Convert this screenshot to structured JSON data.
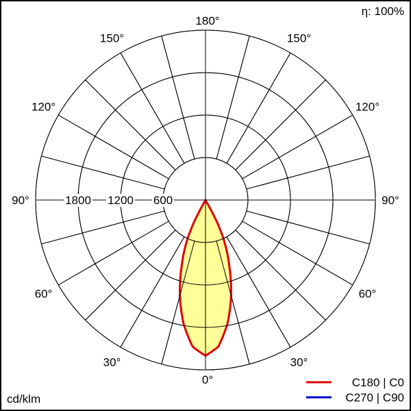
{
  "chart_data": {
    "type": "polar",
    "efficiency_label": "η: 100%",
    "unit_label": "cd/klm",
    "radial_ticks": [
      600,
      1200,
      1800
    ],
    "radial_max": 2400,
    "radial_tick_labels": [
      "600",
      "1200",
      "1800"
    ],
    "angle_labels": [
      {
        "angle": 180,
        "text": "180°"
      },
      {
        "angle": 150,
        "text": "150°"
      },
      {
        "angle": 120,
        "text": "120°"
      },
      {
        "angle": 90,
        "text": "90°"
      },
      {
        "angle": 60,
        "text": "60°"
      },
      {
        "angle": 30,
        "text": "30°"
      },
      {
        "angle": 0,
        "text": "0°"
      }
    ],
    "spoke_step_deg": 15,
    "series": [
      {
        "name": "C270 | C90",
        "color": "#0000cc",
        "angles": [
          0,
          5,
          10,
          15,
          20,
          25,
          28,
          30,
          35,
          90,
          180
        ],
        "values": [
          2200,
          2080,
          1780,
          1400,
          980,
          600,
          300,
          0,
          0,
          0,
          0
        ]
      },
      {
        "name": "C180 | C0",
        "color": "#e00000",
        "fill": "#ffff99",
        "angles": [
          0,
          5,
          10,
          15,
          20,
          25,
          28,
          30,
          35,
          90,
          180
        ],
        "values": [
          2200,
          2080,
          1780,
          1400,
          980,
          600,
          300,
          0,
          0,
          0,
          0
        ]
      }
    ],
    "legend_placement": "bottom-right"
  }
}
